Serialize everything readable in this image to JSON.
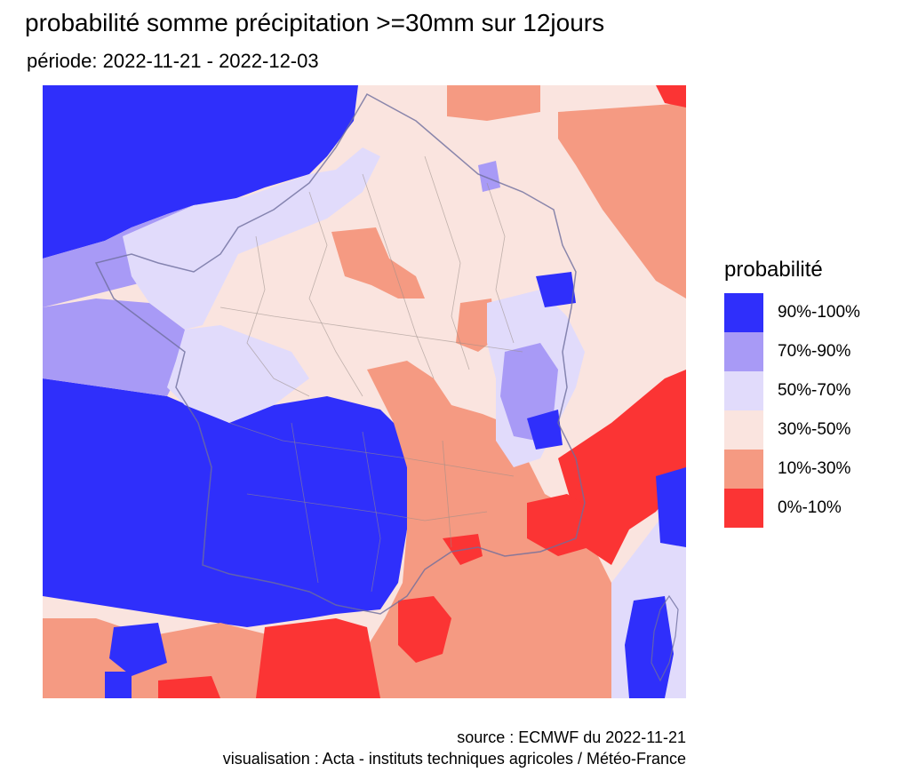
{
  "header": {
    "title": "probabilité somme précipitation >=30mm sur 12jours",
    "subtitle": "période: 2022-11-21 - 2022-12-03"
  },
  "legend": {
    "title": "probabilité",
    "items": [
      {
        "label": "90%-100%",
        "color": "#2f2ffb"
      },
      {
        "label": "70%-90%",
        "color": "#a89af6"
      },
      {
        "label": "50%-70%",
        "color": "#e1dbfb"
      },
      {
        "label": "30%-50%",
        "color": "#fae4df"
      },
      {
        "label": "10%-30%",
        "color": "#f59a82"
      },
      {
        "label": "0%-10%",
        "color": "#fb3434"
      }
    ]
  },
  "footer": {
    "source": "source : ECMWF du 2022-11-21",
    "credit": "visualisation : Acta - instituts techniques agricoles / Météo-France"
  },
  "map": {
    "region": "France",
    "background_color": "#fae4df",
    "border_color": "#9a8d88"
  }
}
